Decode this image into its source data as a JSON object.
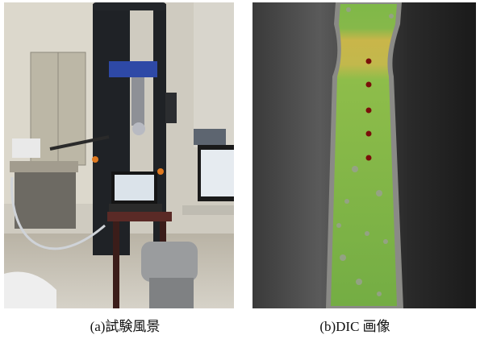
{
  "figure": {
    "panels": [
      {
        "caption": "(a)試験風景"
      },
      {
        "caption": "(b)DIC 画像"
      }
    ]
  }
}
